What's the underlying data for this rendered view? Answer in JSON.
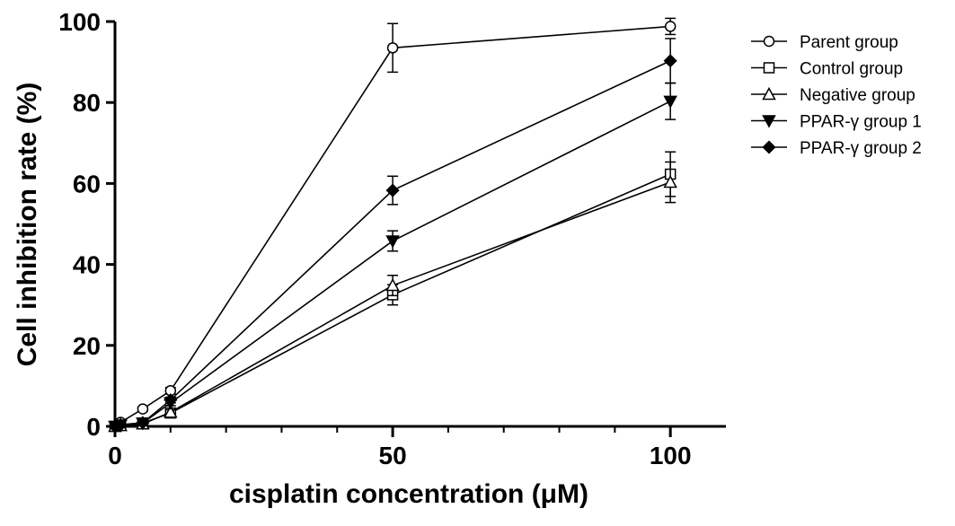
{
  "chart_data": {
    "type": "line",
    "title": "",
    "xlabel": "cisplatin concentration (μM)",
    "ylabel": "Cell inhibition rate (%)",
    "xlim": [
      0,
      110
    ],
    "ylim": [
      0,
      100
    ],
    "x_ticks": [
      0,
      50,
      100
    ],
    "x_minor_ticks": [
      10,
      20,
      30,
      40,
      60,
      70,
      80,
      90
    ],
    "y_ticks": [
      0,
      20,
      40,
      60,
      80,
      100
    ],
    "x_tick_labels": [
      "0",
      "50",
      "100"
    ],
    "y_tick_labels": [
      "0",
      "20",
      "40",
      "60",
      "80",
      "100"
    ],
    "grid": false,
    "legend_position": "top-right",
    "x": [
      0,
      1,
      5,
      10,
      50,
      100
    ],
    "series": [
      {
        "name": "Parent group",
        "marker": "open-circle",
        "values": [
          0,
          1.0,
          4.3,
          8.8,
          93.5,
          98.8
        ],
        "errors": [
          0,
          0.3,
          0.5,
          0.8,
          6.0,
          2.0
        ]
      },
      {
        "name": "Control group",
        "marker": "open-square",
        "values": [
          0,
          0.3,
          0.8,
          3.3,
          32.5,
          62.3
        ],
        "errors": [
          0,
          0.2,
          0.4,
          0.6,
          2.5,
          5.5
        ]
      },
      {
        "name": "Negative group",
        "marker": "open-triangle",
        "values": [
          0,
          0.2,
          0.6,
          3.5,
          34.8,
          60.3
        ],
        "errors": [
          0,
          0.2,
          0.4,
          0.6,
          2.5,
          5.0
        ]
      },
      {
        "name": "PPAR-γ  group 1",
        "marker": "filled-triangle-down",
        "values": [
          0,
          0.3,
          0.8,
          5.8,
          45.8,
          80.3
        ],
        "errors": [
          0,
          0.2,
          0.4,
          0.7,
          2.5,
          4.5
        ]
      },
      {
        "name": "PPAR-γ  group 2",
        "marker": "filled-diamond",
        "values": [
          0,
          0.4,
          0.9,
          6.5,
          58.3,
          90.3
        ],
        "errors": [
          0,
          0.2,
          0.4,
          0.7,
          3.5,
          5.5
        ]
      }
    ]
  }
}
